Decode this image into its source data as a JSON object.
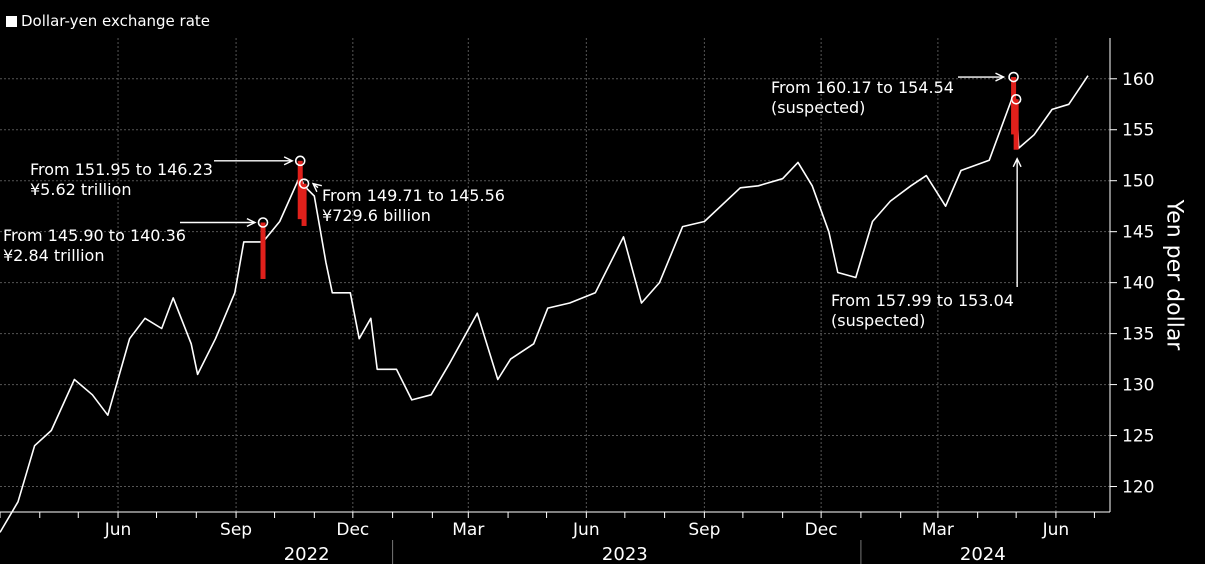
{
  "legend": {
    "label": "Dollar-yen exchange rate"
  },
  "axis": {
    "ylabel": "Yen per dollar"
  },
  "annotations": [
    {
      "id": "a1",
      "line1": "From 145.90 to 140.36",
      "line2": "¥2.84 trillion"
    },
    {
      "id": "a2",
      "line1": "From 151.95 to 146.23",
      "line2": "¥5.62 trillion"
    },
    {
      "id": "a3",
      "line1": "From 149.71 to 145.56",
      "line2": "¥729.6 billion"
    },
    {
      "id": "a4",
      "line1": "From 160.17 to 154.54",
      "line2": "(suspected)"
    },
    {
      "id": "a5",
      "line1": "From 157.99 to 153.04",
      "line2": "(suspected)"
    }
  ],
  "colors": {
    "background": "#000000",
    "line": "#ffffff",
    "intervention": "#e0201b",
    "grid": "#555555"
  },
  "chart_data": {
    "type": "line",
    "ylabel": "Yen per dollar",
    "ylim": [
      117.5,
      164
    ],
    "yticks": [
      120,
      125,
      130,
      135,
      140,
      145,
      150,
      155,
      160
    ],
    "xticks": [
      "Jun",
      "Sep",
      "Dec",
      "Mar",
      "Jun",
      "Sep",
      "Dec",
      "Mar",
      "Jun"
    ],
    "xtick_dates": [
      "2022-06-01",
      "2022-09-01",
      "2022-12-01",
      "2023-03-01",
      "2023-06-01",
      "2023-09-01",
      "2023-12-01",
      "2024-03-01",
      "2024-06-01"
    ],
    "years": [
      "2022",
      "2023",
      "2024"
    ],
    "grid": true,
    "legend_position": "top-left",
    "series": [
      {
        "name": "Dollar-yen exchange rate",
        "x": [
          "2022-03-01",
          "2022-03-15",
          "2022-03-28",
          "2022-04-10",
          "2022-04-28",
          "2022-05-12",
          "2022-05-24",
          "2022-06-10",
          "2022-06-22",
          "2022-07-05",
          "2022-07-14",
          "2022-07-28",
          "2022-08-02",
          "2022-08-16",
          "2022-08-31",
          "2022-09-07",
          "2022-09-22",
          "2022-10-05",
          "2022-10-21",
          "2022-10-24",
          "2022-11-01",
          "2022-11-10",
          "2022-11-15",
          "2022-11-29",
          "2022-12-06",
          "2022-12-15",
          "2022-12-20",
          "2023-01-04",
          "2023-01-16",
          "2023-01-31",
          "2023-02-14",
          "2023-03-08",
          "2023-03-24",
          "2023-04-03",
          "2023-04-21",
          "2023-05-02",
          "2023-05-19",
          "2023-06-08",
          "2023-06-30",
          "2023-07-14",
          "2023-07-28",
          "2023-08-15",
          "2023-09-01",
          "2023-09-29",
          "2023-10-13",
          "2023-11-01",
          "2023-11-13",
          "2023-11-24",
          "2023-12-07",
          "2023-12-14",
          "2023-12-28",
          "2024-01-10",
          "2024-01-24",
          "2024-02-09",
          "2024-02-21",
          "2024-03-07",
          "2024-03-19",
          "2024-04-10",
          "2024-04-29",
          "2024-05-01",
          "2024-05-03",
          "2024-05-15",
          "2024-05-29",
          "2024-06-11",
          "2024-06-26"
        ],
        "values": [
          115.5,
          118.5,
          124,
          125.5,
          130.5,
          129,
          127,
          134.5,
          136.5,
          135.5,
          138.5,
          134,
          131,
          134.5,
          139,
          144,
          144,
          146,
          150.5,
          149.5,
          148.5,
          142,
          139,
          139,
          134.5,
          136.5,
          131.5,
          131.5,
          128.5,
          129,
          132,
          137,
          130.5,
          132.5,
          134,
          137.5,
          138,
          139,
          144.5,
          138,
          140,
          145.5,
          146,
          149.3,
          149.5,
          150.2,
          151.8,
          149.5,
          145,
          141,
          140.5,
          146,
          148,
          149.5,
          150.5,
          147.5,
          151,
          152,
          158.5,
          157.8,
          153.2,
          154.5,
          157,
          157.5,
          160.3
        ]
      }
    ],
    "interventions": [
      {
        "date": "2022-09-22",
        "from": 145.9,
        "to": 140.36
      },
      {
        "date": "2022-10-21",
        "from": 151.95,
        "to": 146.23
      },
      {
        "date": "2022-10-24",
        "from": 149.71,
        "to": 145.56
      },
      {
        "date": "2024-04-29",
        "from": 160.17,
        "to": 154.54
      },
      {
        "date": "2024-05-01",
        "from": 157.99,
        "to": 153.04
      }
    ]
  }
}
